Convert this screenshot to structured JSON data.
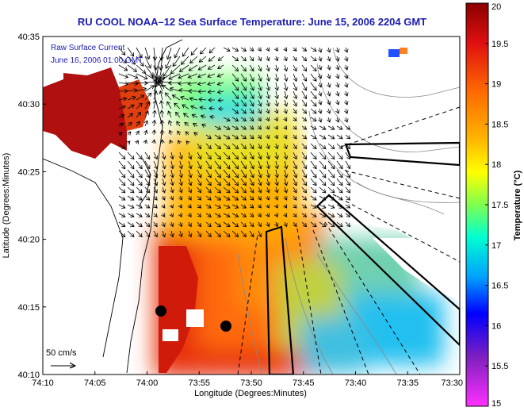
{
  "chart_data": {
    "type": "heatmap",
    "title": "RU COOL  NOAA–12  Sea Surface Temperature:  June 15, 2006 2204 GMT",
    "xlabel": "Longitude (Degrees:Minutes)",
    "ylabel": "Latitude (Degrees:Minutes)",
    "x_ticks": [
      "74:10",
      "74:05",
      "74:00",
      "73:55",
      "73:50",
      "73:45",
      "73:40",
      "73:35",
      "73:30"
    ],
    "y_ticks": [
      "40:35",
      "40:30",
      "40:25",
      "40:20",
      "40:15",
      "40:10"
    ],
    "xlim": [
      -74.1667,
      -73.5
    ],
    "ylim": [
      40.1667,
      40.5833
    ],
    "colorbar": {
      "label": "Temperature (°C)",
      "range": [
        15,
        20
      ],
      "ticks": [
        "20",
        "19.5",
        "19",
        "18.5",
        "18",
        "17.5",
        "17",
        "16.5",
        "16",
        "15.5",
        "15"
      ]
    },
    "annotations": {
      "current_legend_line1": "Raw Surface Current",
      "current_legend_line2": "June 16, 2006 01:00 GMT",
      "scale_label": "50 cm/s"
    },
    "grid": false
  },
  "colors": {
    "title": "#1b1bb5",
    "annotation": "#1b1bb5",
    "land": "#ffffff",
    "coastline": "#000000",
    "bathymetry": "#888888"
  }
}
